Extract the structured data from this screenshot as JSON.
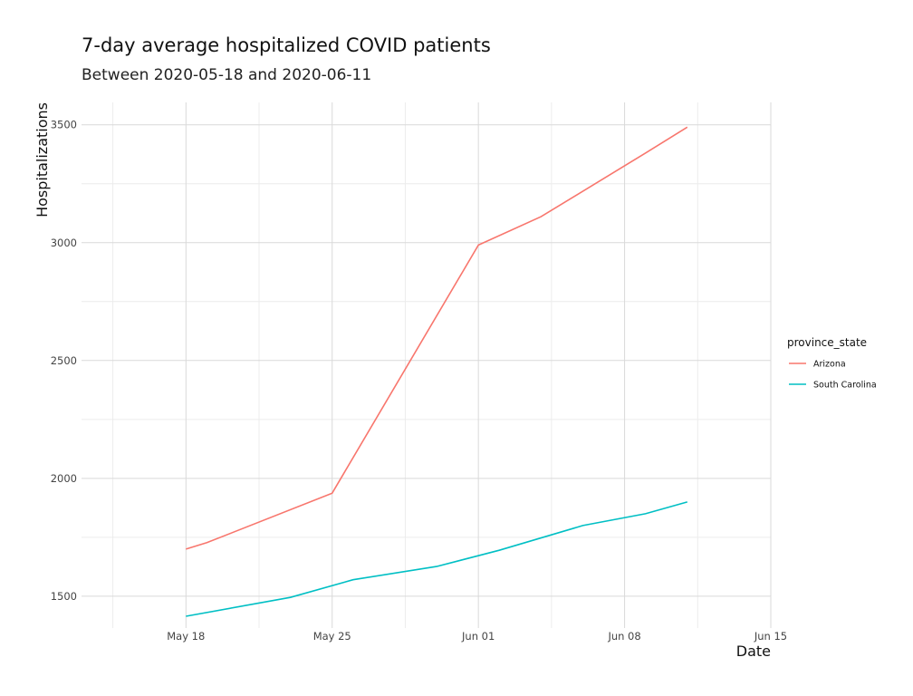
{
  "chart_data": {
    "type": "line",
    "title": "7-day average hospitalized COVID patients",
    "subtitle": "Between 2020-05-18 and 2020-06-11",
    "xlabel": "Date",
    "ylabel": "Hospitalizations",
    "x_type": "date",
    "xlim": [
      "2020-05-13",
      "2020-06-15"
    ],
    "ylim": [
      1365,
      3595
    ],
    "x_ticks": [
      {
        "date": "2020-05-18",
        "label": "May 18"
      },
      {
        "date": "2020-05-25",
        "label": "May 25"
      },
      {
        "date": "2020-06-01",
        "label": "Jun 01"
      },
      {
        "date": "2020-06-08",
        "label": "Jun 08"
      },
      {
        "date": "2020-06-15",
        "label": "Jun 15"
      }
    ],
    "y_ticks": [
      1500,
      2000,
      2500,
      3000,
      3500
    ],
    "grid": true,
    "legend": {
      "title": "province_state",
      "position": "right"
    },
    "series": [
      {
        "name": "Arizona",
        "color": "#F8766D",
        "points": [
          {
            "x": "2020-05-18",
            "y": 1700
          },
          {
            "x": "2020-05-19",
            "y": 1727
          },
          {
            "x": "2020-05-25",
            "y": 1937
          },
          {
            "x": "2020-06-01",
            "y": 2990
          },
          {
            "x": "2020-06-04",
            "y": 3110
          },
          {
            "x": "2020-06-09",
            "y": 3380
          },
          {
            "x": "2020-06-11",
            "y": 3490
          }
        ]
      },
      {
        "name": "South Carolina",
        "color": "#00BFC4",
        "points": [
          {
            "x": "2020-05-18",
            "y": 1415
          },
          {
            "x": "2020-05-23",
            "y": 1495
          },
          {
            "x": "2020-05-26",
            "y": 1570
          },
          {
            "x": "2020-05-30",
            "y": 1626
          },
          {
            "x": "2020-06-02",
            "y": 1695
          },
          {
            "x": "2020-06-06",
            "y": 1800
          },
          {
            "x": "2020-06-09",
            "y": 1850
          },
          {
            "x": "2020-06-11",
            "y": 1900
          }
        ]
      }
    ]
  }
}
